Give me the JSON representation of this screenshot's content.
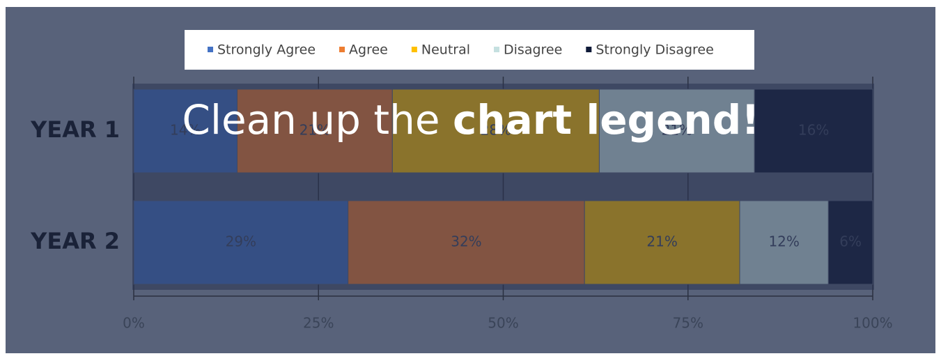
{
  "chart_data": {
    "type": "stacked_bar_horizontal",
    "annotation": [
      "Clean up the",
      "chart legend!"
    ],
    "categories": [
      "YEAR 1",
      "YEAR 2"
    ],
    "series": [
      {
        "name": "Strongly Agree",
        "color": "#4472c4",
        "values": [
          14,
          29
        ],
        "value_labels": [
          "14%",
          "29%"
        ]
      },
      {
        "name": "Agree",
        "color": "#ed7d31",
        "values": [
          21,
          32
        ],
        "value_labels": [
          "21%",
          "32%"
        ]
      },
      {
        "name": "Neutral",
        "color": "#ffc000",
        "values": [
          28,
          21
        ],
        "value_labels": [
          "28%",
          "21%"
        ]
      },
      {
        "name": "Disagree",
        "color": "#c5e0e0",
        "values": [
          21,
          12
        ],
        "value_labels": [
          "21%",
          "12%"
        ]
      },
      {
        "name": "Strongly Disagree",
        "color": "#0f1a38",
        "values": [
          16,
          6
        ],
        "value_labels": [
          "16%",
          "6%"
        ]
      }
    ],
    "xlim": [
      0,
      100
    ],
    "xticks": [
      {
        "value": 0,
        "label": "0%"
      },
      {
        "value": 25,
        "label": "25%"
      },
      {
        "value": 50,
        "label": "50%"
      },
      {
        "value": 75,
        "label": "75%"
      },
      {
        "value": 100,
        "label": "100%"
      }
    ],
    "grid": true,
    "legend": "top"
  }
}
